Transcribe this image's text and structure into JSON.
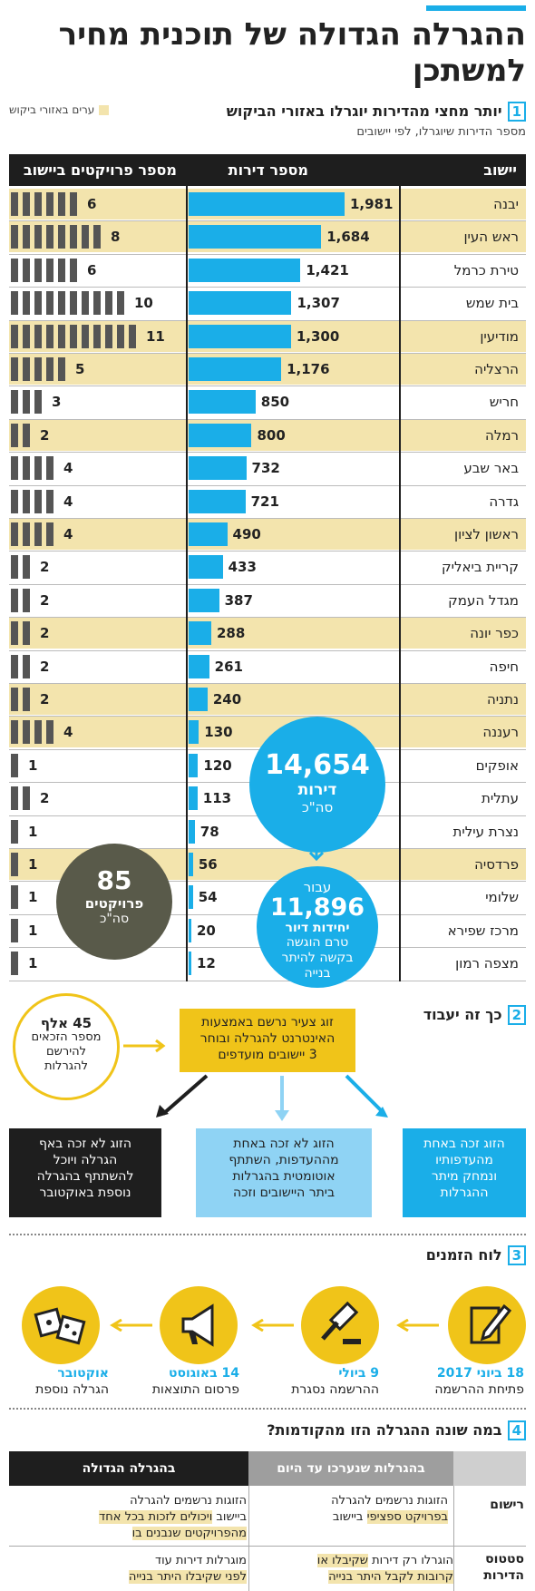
{
  "title": "ההגרלה הגדולה של תוכנית מחיר למשתכן",
  "section1": {
    "num": "1",
    "heading": "יותר מחצי מהדירות יוגרלו באזורי הביקוש",
    "sub": "מספר הדירות שיוגרלו, לפי יישובים",
    "legend": "ערים באזורי ביקוש",
    "col_city": "יישוב",
    "col_apts": "מספר דירות",
    "col_projects": "מספר פרויקטים ביישוב"
  },
  "colors": {
    "accent": "#1aaee8",
    "highlight": "#f3e4ad",
    "dark": "#1e1e1e",
    "yellow": "#f0c419"
  },
  "chart_data": {
    "type": "table",
    "rows": [
      {
        "city": "יבנה",
        "apartments": 1981,
        "apartments_label": "1,981",
        "projects": 6,
        "demand": true
      },
      {
        "city": "ראש העין",
        "apartments": 1684,
        "apartments_label": "1,684",
        "projects": 8,
        "demand": true
      },
      {
        "city": "טירת כרמל",
        "apartments": 1421,
        "apartments_label": "1,421",
        "projects": 6,
        "demand": false
      },
      {
        "city": "בית שמש",
        "apartments": 1307,
        "apartments_label": "1,307",
        "projects": 10,
        "demand": false
      },
      {
        "city": "מודיעין",
        "apartments": 1300,
        "apartments_label": "1,300",
        "projects": 11,
        "demand": true
      },
      {
        "city": "הרצליה",
        "apartments": 1176,
        "apartments_label": "1,176",
        "projects": 5,
        "demand": true
      },
      {
        "city": "חריש",
        "apartments": 850,
        "apartments_label": "850",
        "projects": 3,
        "demand": false
      },
      {
        "city": "רמלה",
        "apartments": 800,
        "apartments_label": "800",
        "projects": 2,
        "demand": true
      },
      {
        "city": "באר שבע",
        "apartments": 732,
        "apartments_label": "732",
        "projects": 4,
        "demand": false
      },
      {
        "city": "גדרה",
        "apartments": 721,
        "apartments_label": "721",
        "projects": 4,
        "demand": false
      },
      {
        "city": "ראשון לציון",
        "apartments": 490,
        "apartments_label": "490",
        "projects": 4,
        "demand": true
      },
      {
        "city": "קריית ביאליק",
        "apartments": 433,
        "apartments_label": "433",
        "projects": 2,
        "demand": false
      },
      {
        "city": "מגדל העמק",
        "apartments": 387,
        "apartments_label": "387",
        "projects": 2,
        "demand": false
      },
      {
        "city": "כפר יונה",
        "apartments": 288,
        "apartments_label": "288",
        "projects": 2,
        "demand": true
      },
      {
        "city": "חיפה",
        "apartments": 261,
        "apartments_label": "261",
        "projects": 2,
        "demand": false
      },
      {
        "city": "נתניה",
        "apartments": 240,
        "apartments_label": "240",
        "projects": 2,
        "demand": true
      },
      {
        "city": "רעננה",
        "apartments": 130,
        "apartments_label": "130",
        "projects": 4,
        "demand": true
      },
      {
        "city": "אופקים",
        "apartments": 120,
        "apartments_label": "120",
        "projects": 1,
        "demand": false
      },
      {
        "city": "עתלית",
        "apartments": 113,
        "apartments_label": "113",
        "projects": 2,
        "demand": false
      },
      {
        "city": "נצרת עילית",
        "apartments": 78,
        "apartments_label": "78",
        "projects": 1,
        "demand": false
      },
      {
        "city": "פרדסיה",
        "apartments": 56,
        "apartments_label": "56",
        "projects": 1,
        "demand": true
      },
      {
        "city": "שלומי",
        "apartments": 54,
        "apartments_label": "54",
        "projects": 1,
        "demand": false
      },
      {
        "city": "מרכז שפירא",
        "apartments": 20,
        "apartments_label": "20",
        "projects": 1,
        "demand": false
      },
      {
        "city": "מצפה רמון",
        "apartments": 12,
        "apartments_label": "12",
        "projects": 1,
        "demand": false
      }
    ]
  },
  "totals": {
    "apts_num": "14,654",
    "apts_unit": "דירות",
    "apts_note": "סה\"כ",
    "pending_pre": "עבור",
    "pending_num": "11,896",
    "pending_unit": "יחידות דיור",
    "pending_note1": "טרם הוגשה",
    "pending_note2": "בקשה להיתר",
    "pending_note3": "בנייה",
    "proj_num": "85",
    "proj_unit": "פרויקטים",
    "proj_note": "סה\"כ"
  },
  "section2": {
    "num": "2",
    "heading": "כך זה יעבוד",
    "ring_num": "45 אלף",
    "ring_text1": "מספר הזכאים",
    "ring_text2": "להירשם",
    "ring_text3": "להגרלות",
    "main_box": [
      "זוג צעיר נרשם באמצעות",
      "האינטרנט להגרלה ובוחר",
      "3 יישובים מועדפים"
    ],
    "box_blue": [
      "הזוג זכה באחת",
      "מהעדפותיו",
      "ונמחק מיתר",
      "ההגרלות"
    ],
    "box_light": [
      "הזוג לא זכה באחת",
      "מההעדפות, השתתף",
      "אוטומטית בהגרלות",
      "ביתר היישובים וזכה"
    ],
    "box_dark": [
      "הזוג לא זכה באף",
      "הגרלה ויוכל",
      "להשתתף בהגרלה",
      "נוספת באוקטובר"
    ]
  },
  "section3": {
    "num": "3",
    "heading": "לוח הזמנים",
    "items": [
      {
        "date": "18 ביוני 2017",
        "desc": "פתיחת ההרשמה",
        "icon": "pencil-paper-icon"
      },
      {
        "date": "9 ביולי",
        "desc": "ההרשמה נסגרת",
        "icon": "gavel-icon"
      },
      {
        "date": "14 באוגוסט",
        "desc": "פרסום התוצאות",
        "icon": "megaphone-icon"
      },
      {
        "date": "אוקטובר",
        "desc": "הגרלה נוספת",
        "icon": "dice-icon"
      }
    ]
  },
  "section4": {
    "num": "4",
    "heading": "במה שונה ההגרלה הזו מהקודמות?",
    "col_old": "בהגרלות שנערכו עד היום",
    "col_new": "בהגרלה הגדולה",
    "row1_label": "רישום",
    "row1_old_a": "הזוגות נרשמים להגרלה",
    "row1_old_b": "בפרויקט ספציפי",
    "row1_old_c": "ביישוב",
    "row1_new_a": "הזוגות נרשמים להגרלה",
    "row1_new_b": "ביישוב",
    "row1_new_c": "ויכולים לזכות בכל אחד",
    "row1_new_d": "מהפרויקטים שנבנים בו",
    "row2_label_a": "סטטוס",
    "row2_label_b": "הדירות",
    "row2_old_a": "הוגרלו רק דירות",
    "row2_old_b": "שקיבלו או",
    "row2_old_c": "קרובות לקבל היתר בנייה",
    "row2_new_a": "מוגרלות דירות עוד",
    "row2_new_b": "לפני שקיבלו היתר בנייה"
  }
}
